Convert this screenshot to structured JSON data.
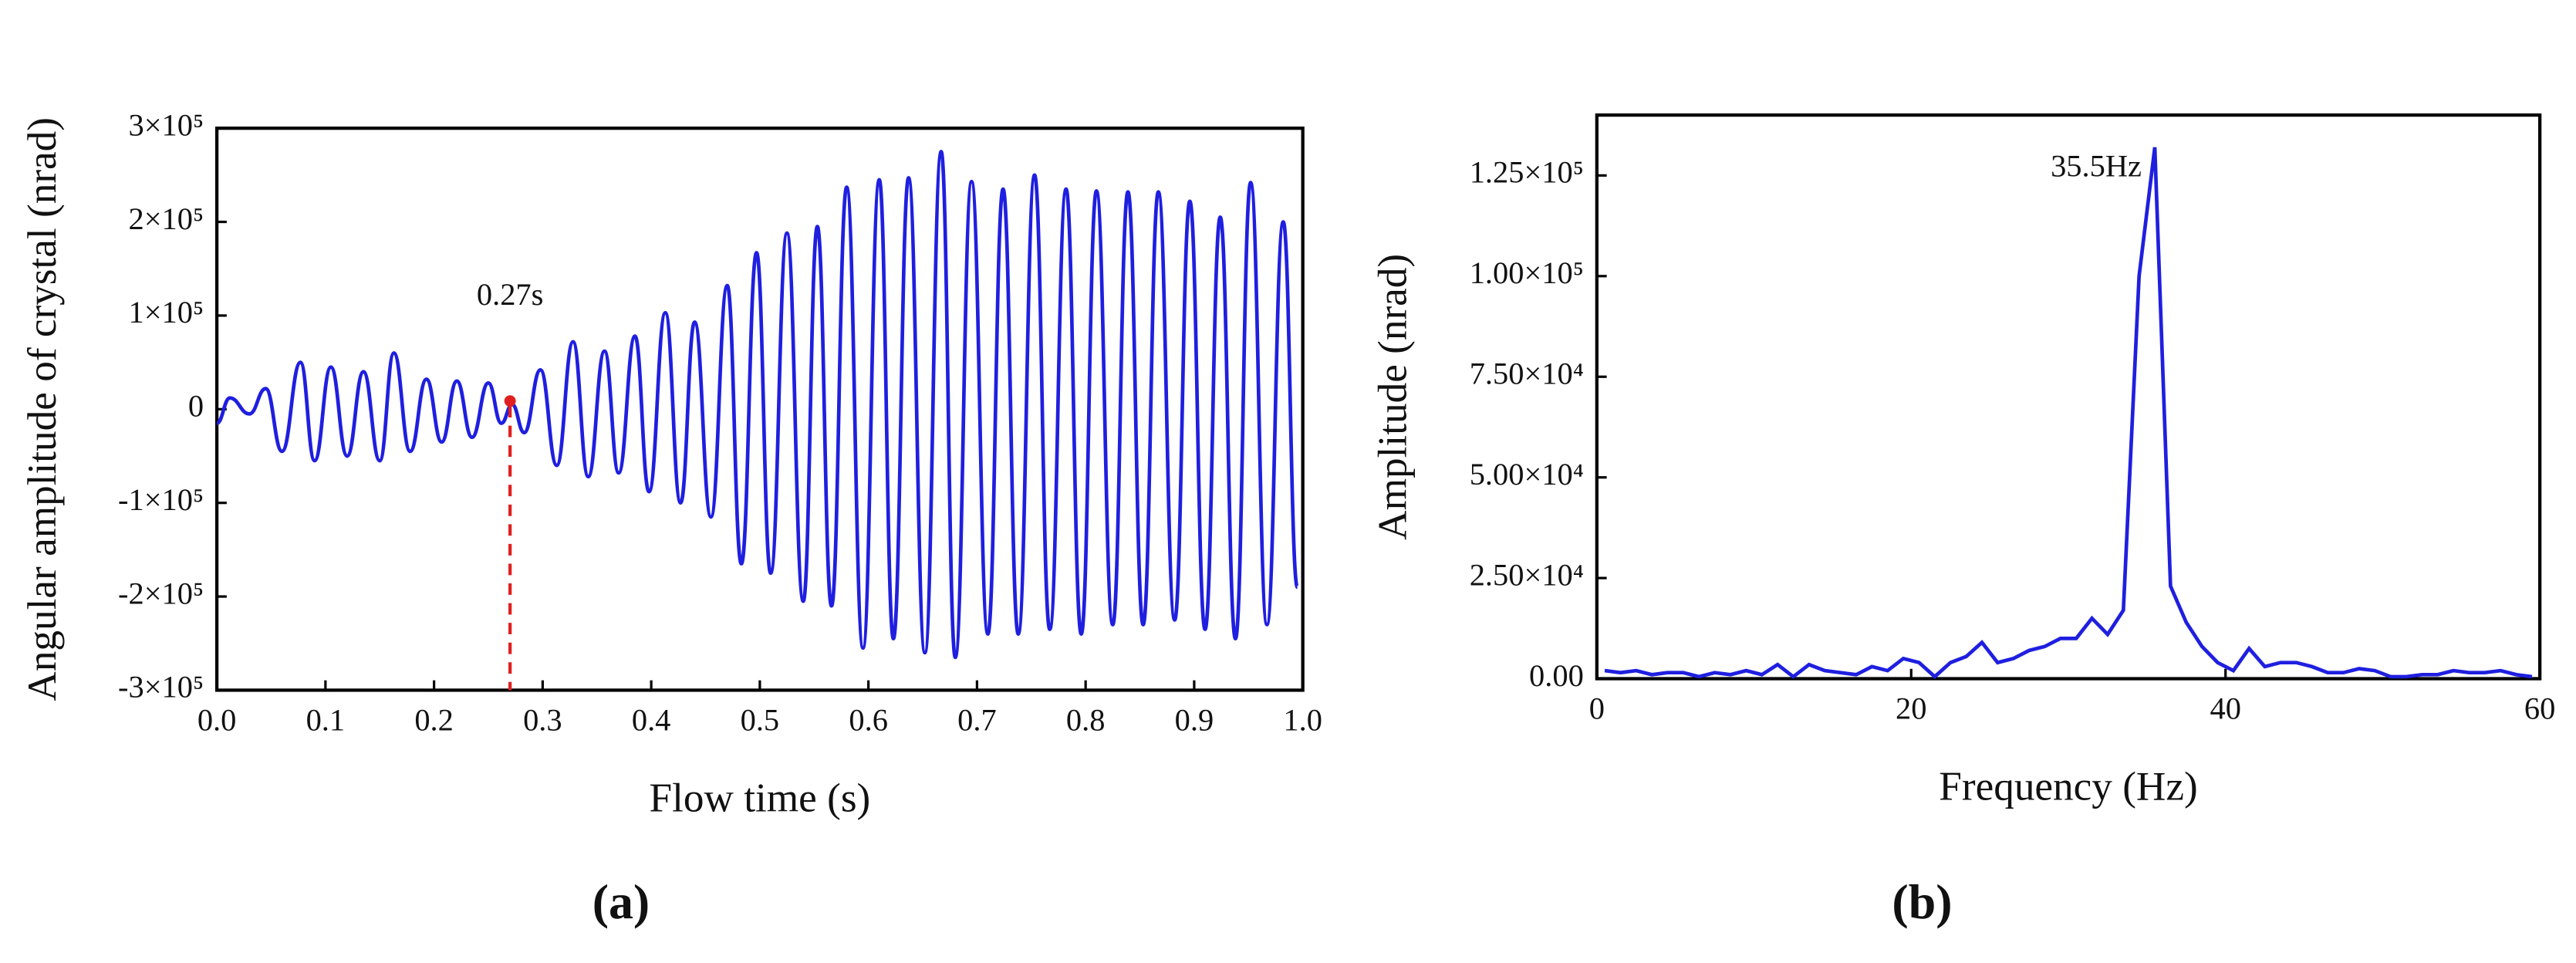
{
  "chart_data": [
    {
      "type": "line",
      "x_label": "Flow time (s)",
      "y_label": "Angular amplitude of  crystal (nrad)",
      "caption": "(a)",
      "xlim": [
        0,
        1
      ],
      "ylim": [
        -300000,
        300000
      ],
      "xticks": [
        {
          "value": 0,
          "label": "0.0"
        },
        0.1,
        0.2,
        0.3,
        0.4,
        0.5,
        0.6,
        0.7,
        0.8,
        0.9,
        {
          "value": 1,
          "label": "1.0"
        }
      ],
      "yticks": [
        {
          "value": -300000,
          "label": "-3×10⁵"
        },
        {
          "value": -200000,
          "label": "-2×10⁵"
        },
        {
          "value": -100000,
          "label": "-1×10⁵"
        },
        0,
        {
          "value": 100000,
          "label": "1×10⁵"
        },
        {
          "value": 200000,
          "label": "2×10⁵"
        },
        {
          "value": 300000,
          "label": "3×10⁵"
        }
      ],
      "smooth": true,
      "x": [
        0,
        0.012,
        0.03,
        0.045,
        0.06,
        0.077,
        0.09,
        0.105,
        0.12,
        0.135,
        0.15,
        0.163,
        0.178,
        0.193,
        0.207,
        0.221,
        0.235,
        0.25,
        0.262,
        0.272,
        0.283,
        0.298,
        0.313,
        0.328,
        0.342,
        0.357,
        0.37,
        0.385,
        0.398,
        0.413,
        0.427,
        0.44,
        0.455,
        0.47,
        0.483,
        0.497,
        0.51,
        0.525,
        0.54,
        0.553,
        0.566,
        0.58,
        0.595,
        0.61,
        0.623,
        0.637,
        0.652,
        0.667,
        0.68,
        0.695,
        0.71,
        0.724,
        0.738,
        0.753,
        0.767,
        0.782,
        0.796,
        0.81,
        0.825,
        0.839,
        0.853,
        0.867,
        0.882,
        0.896,
        0.91,
        0.924,
        0.938,
        0.952,
        0.967,
        0.982,
        0.995
      ],
      "series": [
        {
          "color": "#1f1fe0",
          "values": [
            -15000,
            12000,
            -5000,
            22000,
            -45000,
            50000,
            -55000,
            45000,
            -50000,
            40000,
            -55000,
            60000,
            -45000,
            32000,
            -35000,
            30000,
            -30000,
            28000,
            -15000,
            5000,
            -25000,
            42000,
            -60000,
            72000,
            -72000,
            62000,
            -68000,
            78000,
            -88000,
            103000,
            -100000,
            93000,
            -115000,
            132000,
            -165000,
            167000,
            -175000,
            188000,
            -205000,
            195000,
            -210000,
            237000,
            -255000,
            245000,
            -245000,
            247000,
            -260000,
            275000,
            -265000,
            243000,
            -240000,
            235000,
            -240000,
            250000,
            -235000,
            235000,
            -240000,
            233000,
            -230000,
            232000,
            -230000,
            232000,
            -225000,
            222000,
            -235000,
            205000,
            -245000,
            242000,
            -230000,
            200000,
            -190000
          ]
        }
      ],
      "annotations": [
        {
          "text": "0.27s",
          "x": 0.27,
          "color": "#e02020"
        }
      ]
    },
    {
      "type": "line",
      "x_label": "Frequency (Hz)",
      "y_label": "Amplitude (nrad)",
      "caption": "(b)",
      "xlim": [
        0,
        60
      ],
      "ylim": [
        0,
        140000
      ],
      "xticks": [
        0,
        20,
        40,
        60
      ],
      "yticks": [
        {
          "value": 0,
          "label": "0.00"
        },
        {
          "value": 25000,
          "label": "2.50×10⁴"
        },
        {
          "value": 50000,
          "label": "5.00×10⁴"
        },
        {
          "value": 75000,
          "label": "7.50×10⁴"
        },
        {
          "value": 100000,
          "label": "1.00×10⁵"
        },
        {
          "value": 125000,
          "label": "1.25×10⁵"
        }
      ],
      "smooth": false,
      "x": [
        0.5,
        1.5,
        2.5,
        3.5,
        4.5,
        5.5,
        6.5,
        7.5,
        8.5,
        9.5,
        10.5,
        11.5,
        12.5,
        13.5,
        14.5,
        15.5,
        16.5,
        17.5,
        18.5,
        19.5,
        20.5,
        21.5,
        22.5,
        23.5,
        24.5,
        25.5,
        26.5,
        27.5,
        28.5,
        29.5,
        30.5,
        31.5,
        32.5,
        33.5,
        34.5,
        35.5,
        36.5,
        37.5,
        38.5,
        39.5,
        40.5,
        41.5,
        42.5,
        43.5,
        44.5,
        45.5,
        46.5,
        47.5,
        48.5,
        49.5,
        50.5,
        51.5,
        52.5,
        53.5,
        54.5,
        55.5,
        56.5,
        57.5,
        58.5,
        59.5
      ],
      "series": [
        {
          "color": "#1f1fe0",
          "values": [
            2000,
            1500,
            2000,
            1000,
            1500,
            1500,
            500,
            1500,
            1000,
            2000,
            1000,
            3500,
            500,
            3500,
            2000,
            1500,
            1000,
            3000,
            2000,
            5000,
            4000,
            500,
            4000,
            5500,
            9000,
            4000,
            5000,
            7000,
            8000,
            10000,
            10000,
            15000,
            11000,
            17000,
            100000,
            132000,
            23000,
            14000,
            8000,
            4000,
            2000,
            7500,
            3000,
            4000,
            4000,
            3000,
            1500,
            1500,
            2500,
            2000,
            500,
            500,
            1000,
            1000,
            2000,
            1500,
            1500,
            2000,
            1000,
            500
          ]
        }
      ],
      "annotations": [
        {
          "text": "35.5Hz",
          "x": 35.5,
          "color": "#e02020"
        }
      ]
    }
  ]
}
